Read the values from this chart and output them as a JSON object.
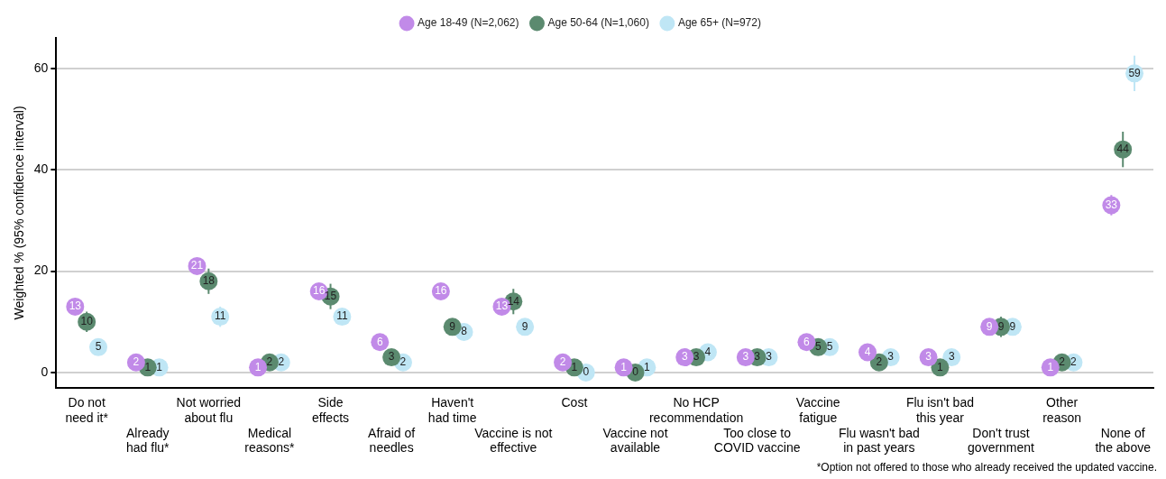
{
  "chart_data": {
    "type": "scatter",
    "ylabel": "Weighted % (95% confidence interval)",
    "categories": [
      "Do not\nneed it*",
      "Already\nhad flu*",
      "Not worried\nabout flu",
      "Medical\nreasons*",
      "Side\neffects",
      "Afraid of\nneedles",
      "Haven't\nhad time",
      "Vaccine is not\neffective",
      "Cost",
      "Vaccine not\navailable",
      "No HCP\nrecommendation",
      "Too close to\nCOVID vaccine",
      "Vaccine\nfatigue",
      "Flu wasn't bad\nin past years",
      "Flu isn't bad\nthis year",
      "Don't trust\ngovernment",
      "Other\nreason",
      "None of\nthe above"
    ],
    "series": [
      {
        "name": "Age 18-49 (N=2,062)",
        "color": "#c18ae8",
        "values": [
          13,
          2,
          21,
          1,
          16,
          6,
          16,
          13,
          2,
          1,
          3,
          3,
          6,
          4,
          3,
          9,
          1,
          33
        ],
        "errors": [
          1,
          1,
          1.5,
          0.5,
          1.5,
          1,
          1,
          1,
          0.5,
          0.5,
          1,
          0.5,
          1,
          1,
          1,
          1,
          0.5,
          2
        ]
      },
      {
        "name": "Age 50-64 (N=1,060)",
        "color": "#5b8a6f",
        "values": [
          10,
          1,
          18,
          2,
          15,
          3,
          9,
          14,
          1,
          0,
          3,
          3,
          5,
          2,
          1,
          9,
          2,
          44
        ],
        "errors": [
          2,
          1,
          2.5,
          1,
          2.5,
          1.5,
          1.5,
          2.5,
          1,
          0.5,
          1.5,
          1.5,
          1.5,
          1,
          1,
          2,
          1,
          3.5
        ]
      },
      {
        "name": "Age 65+ (N=972)",
        "color": "#bfe6f5",
        "values": [
          5,
          1,
          11,
          2,
          11,
          2,
          8,
          9,
          0,
          1,
          4,
          3,
          5,
          3,
          3,
          9,
          2,
          59
        ],
        "errors": [
          1,
          0.5,
          2,
          1,
          1.5,
          1,
          1,
          1.5,
          0.5,
          0.5,
          1,
          1,
          1,
          1,
          1,
          1,
          1,
          3.5
        ]
      }
    ],
    "data_labels": true,
    "marker": "circle",
    "ylim": [
      -3,
      66
    ],
    "yticks": [
      0,
      20,
      40,
      60
    ],
    "grid": "y",
    "legend": "top",
    "annotations": [
      "*Option not offered to those who already received the updated vaccine."
    ]
  }
}
